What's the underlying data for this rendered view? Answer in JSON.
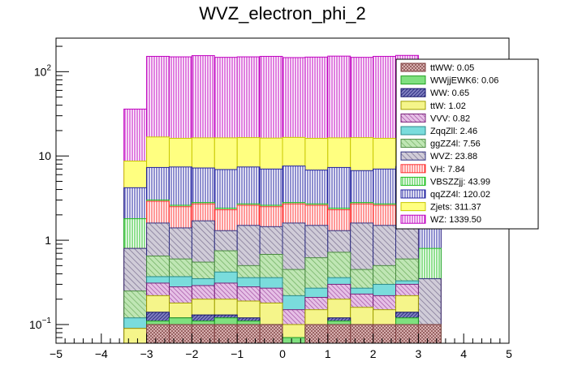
{
  "chart_data": {
    "type": "bar",
    "stacked": true,
    "title": "WVZ_electron_phi_2",
    "xlabel": "",
    "ylabel": "",
    "xlim": [
      -5,
      5
    ],
    "ylim": [
      0.06,
      250
    ],
    "log_y": true,
    "bin_edges": [
      -3.5,
      -3.0,
      -2.5,
      -2.0,
      -1.5,
      -1.0,
      -0.5,
      0.0,
      0.5,
      1.0,
      1.5,
      2.0,
      2.5,
      3.0,
      3.5
    ],
    "x_ticks": [
      {
        "value": -5,
        "label": "−5"
      },
      {
        "value": -4,
        "label": "−4"
      },
      {
        "value": -3,
        "label": "−3"
      },
      {
        "value": -2,
        "label": "−2"
      },
      {
        "value": -1,
        "label": "−1"
      },
      {
        "value": 0,
        "label": "0"
      },
      {
        "value": 1,
        "label": "1"
      },
      {
        "value": 2,
        "label": "2"
      },
      {
        "value": 3,
        "label": "3"
      },
      {
        "value": 4,
        "label": "4"
      },
      {
        "value": 5,
        "label": "5"
      }
    ],
    "y_ticks": [
      {
        "value": 0.1,
        "base": "10",
        "exp": "−1"
      },
      {
        "value": 1,
        "label": "1"
      },
      {
        "value": 10,
        "label": "10"
      },
      {
        "value": 100,
        "base": "10",
        "exp": "2"
      }
    ],
    "stack_tops": [
      {
        "name": "ttWW",
        "values": [
          0.06,
          0.1,
          0.1,
          0.1,
          0.1,
          0.1,
          0.1,
          0.06,
          0.1,
          0.1,
          0.1,
          0.1,
          0.1,
          0.1
        ]
      },
      {
        "name": "WWjjEWK6",
        "values": [
          0.06,
          0.11,
          0.12,
          0.11,
          0.12,
          0.11,
          0.1,
          0.07,
          0.09,
          0.11,
          0.1,
          0.09,
          0.12,
          0.06
        ]
      },
      {
        "name": "WW",
        "values": [
          0.06,
          0.14,
          0.12,
          0.13,
          0.13,
          0.12,
          0.1,
          0.07,
          0.09,
          0.12,
          0.1,
          0.09,
          0.14,
          0.06
        ]
      },
      {
        "name": "ttW",
        "values": [
          0.09,
          0.22,
          0.18,
          0.2,
          0.2,
          0.19,
          0.18,
          0.1,
          0.15,
          0.2,
          0.16,
          0.15,
          0.22,
          0.06
        ]
      },
      {
        "name": "VVV",
        "values": [
          0.09,
          0.31,
          0.28,
          0.29,
          0.31,
          0.28,
          0.27,
          0.15,
          0.21,
          0.3,
          0.23,
          0.22,
          0.3,
          0.06
        ]
      },
      {
        "name": "ZqqZll",
        "values": [
          0.12,
          0.37,
          0.37,
          0.35,
          0.42,
          0.36,
          0.36,
          0.22,
          0.27,
          0.36,
          0.27,
          0.3,
          0.33,
          0.06
        ]
      },
      {
        "name": "ggZZ4l",
        "values": [
          0.25,
          0.65,
          0.6,
          0.55,
          0.75,
          0.5,
          0.68,
          0.45,
          0.62,
          0.72,
          0.45,
          0.5,
          0.6,
          0.1
        ]
      },
      {
        "name": "WVZ",
        "values": [
          0.8,
          1.6,
          1.4,
          1.7,
          1.3,
          1.5,
          1.45,
          1.6,
          1.5,
          1.3,
          1.6,
          1.5,
          1.5,
          0.35
        ]
      },
      {
        "name": "VH",
        "values": [
          0.8,
          2.9,
          2.5,
          2.7,
          2.3,
          2.6,
          2.5,
          2.7,
          2.6,
          2.3,
          2.7,
          2.6,
          2.6,
          0.35
        ]
      },
      {
        "name": "VBSZZjj",
        "values": [
          1.8,
          3.0,
          2.6,
          2.8,
          2.4,
          2.7,
          2.6,
          2.8,
          2.7,
          2.4,
          2.8,
          2.7,
          2.7,
          0.8
        ]
      },
      {
        "name": "qqZZ4l",
        "values": [
          4.2,
          7.3,
          7.4,
          7.2,
          6.9,
          7.4,
          7.0,
          7.6,
          6.8,
          7.3,
          6.7,
          7.0,
          7.5,
          1.8
        ]
      },
      {
        "name": "Zjets",
        "values": [
          8.7,
          16.8,
          16.2,
          16.4,
          16.4,
          16.5,
          16.3,
          16.6,
          16.2,
          16.4,
          16.5,
          16.2,
          16.0,
          4.2
        ]
      },
      {
        "name": "WZ",
        "values": [
          36,
          152,
          150,
          155,
          148,
          150,
          152,
          147,
          149,
          153,
          148,
          152,
          156,
          31
        ]
      }
    ],
    "legend": [
      {
        "label": "ttWW: 0.05",
        "color": "#d8a8a8",
        "pattern": "cross"
      },
      {
        "label": "WWjjEWK6: 0.06",
        "color": "#7fe07f",
        "pattern": "solid"
      },
      {
        "label": "WW: 0.65",
        "color": "#1f1f8f",
        "pattern": "dense-diag"
      },
      {
        "label": "ttW: 1.02",
        "color": "#f5f58a",
        "pattern": "solid"
      },
      {
        "label": "VVV: 0.82",
        "color": "#c878c8",
        "pattern": "diag"
      },
      {
        "label": "ZqqZll: 2.46",
        "color": "#7adcdc",
        "pattern": "solid"
      },
      {
        "label": "ggZZ4l: 7.56",
        "color": "#a8d8a0",
        "pattern": "diag"
      },
      {
        "label": "WVZ: 23.88",
        "color": "#b8b0c8",
        "pattern": "diag"
      },
      {
        "label": "VH: 7.84",
        "color": "#ff3030",
        "pattern": "vert"
      },
      {
        "label": "VBSZZjj: 43.99",
        "color": "#20c020",
        "pattern": "vert"
      },
      {
        "label": "qqZZ4l: 120.02",
        "color": "#2020a0",
        "pattern": "vert"
      },
      {
        "label": "Zjets: 311.37",
        "color": "#ffff80",
        "pattern": "solid"
      },
      {
        "label": "WZ: 1339.50",
        "color": "#c000c0",
        "pattern": "vert"
      }
    ]
  }
}
